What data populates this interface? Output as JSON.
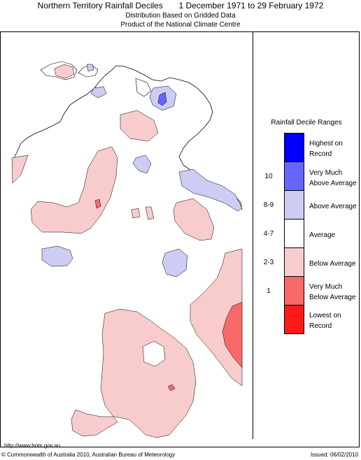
{
  "title": {
    "main": "Northern Territory Rainfall Deciles",
    "period": "1 December 1971 to 29 February 1972"
  },
  "subtitle": {
    "line1": "Distribution Based on Gridded Data",
    "line2": "Product of the National Climate Centre"
  },
  "legend": {
    "title": "Rainfall Decile Ranges",
    "items": [
      {
        "range": "",
        "label_line1": "Highest on",
        "label_line2": "Record",
        "color": "#0000ff"
      },
      {
        "range": "10",
        "label_line1": "Very Much",
        "label_line2": "Above Average",
        "color": "#6666ff"
      },
      {
        "range": "8-9",
        "label_line1": "Above Average",
        "label_line2": "",
        "color": "#ccccf5"
      },
      {
        "range": "4-7",
        "label_line1": "Average",
        "label_line2": "",
        "color": "#ffffff"
      },
      {
        "range": "2-3",
        "label_line1": "Below Average",
        "label_line2": "",
        "color": "#f8cccc"
      },
      {
        "range": "1",
        "label_line1": "Very Much",
        "label_line2": "Below Average",
        "color": "#f86a6a"
      },
      {
        "range": "",
        "label_line1": "Lowest on",
        "label_line2": "Record",
        "color": "#ff1a1a"
      }
    ]
  },
  "footer": {
    "url": "http://www.bom.gov.au",
    "copyright": "© Commonwealth of Australia 2010, Australian Bureau of Meteorology",
    "issued": "Issued: 06/02/2010"
  },
  "colors": {
    "above_average": "#ccccf5",
    "very_much_above": "#6666ff",
    "below_average": "#f8cccc",
    "very_much_below": "#f86a6a",
    "outline": "#000000"
  }
}
